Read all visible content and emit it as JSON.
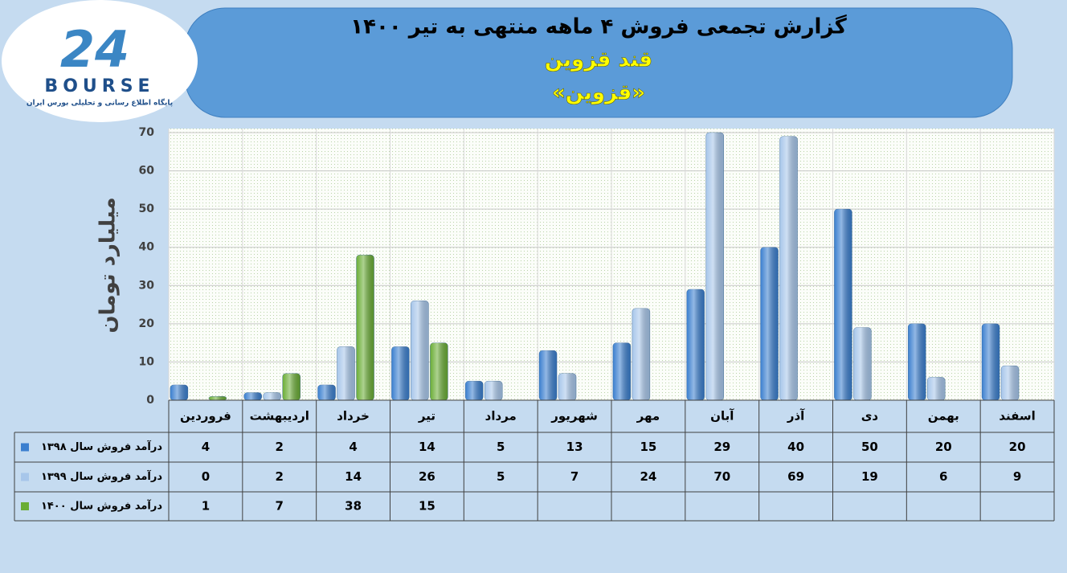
{
  "logo": {
    "number": "24",
    "name": "BOURSE",
    "tagline": "پایگاه اطلاع رسانی و تحلیلی بورس ایران"
  },
  "chart_data": {
    "type": "bar",
    "title": "گزارش تجمعی فروش ۴ ماهه منتهی به تیر ۱۴۰۰",
    "subtitle": "قند قزوین",
    "subtitle2": "«قزوین»",
    "y_label": "میلیارد تومان",
    "categories": [
      "فروردین",
      "اردیبهشت",
      "خرداد",
      "تیر",
      "مرداد",
      "شهریور",
      "مهر",
      "آبان",
      "آذر",
      "دی",
      "بهمن",
      "اسفند"
    ],
    "series": [
      {
        "name": "درآمد فروش سال ۱۳۹۸",
        "color": "#3b7fcf",
        "values": [
          4,
          2,
          4,
          14,
          5,
          13,
          15,
          29,
          40,
          50,
          20,
          20
        ]
      },
      {
        "name": "درآمد فروش سال ۱۳۹۹",
        "color": "#a7c6ea",
        "values": [
          0,
          2,
          14,
          26,
          5,
          7,
          24,
          70,
          69,
          19,
          6,
          9
        ]
      },
      {
        "name": "درآمد فروش سال ۱۴۰۰",
        "color": "#6aad35",
        "values": [
          1,
          7,
          38,
          15,
          null,
          null,
          null,
          null,
          null,
          null,
          null,
          null
        ]
      }
    ],
    "ylim": [
      0,
      70
    ],
    "yticks": [
      0,
      10,
      20,
      30,
      40,
      50,
      60,
      70
    ],
    "grid": true
  }
}
